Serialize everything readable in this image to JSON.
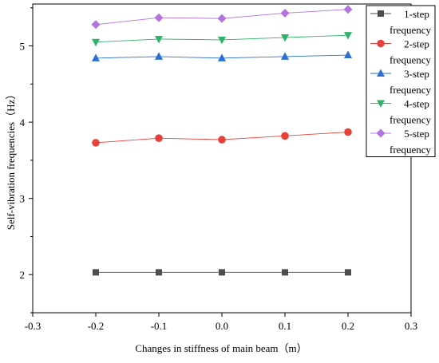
{
  "chart_data": {
    "type": "line",
    "xlabel": "Changes in stiffness of main beam（m）",
    "ylabel": "Self-vibration frequencies（Hz）",
    "xlim": [
      -0.3,
      0.3
    ],
    "ylim": [
      1.5,
      5.55
    ],
    "xticks": [
      -0.3,
      -0.2,
      -0.1,
      0.0,
      0.1,
      0.2,
      0.3
    ],
    "xtick_labels": [
      "-0.3",
      "-0.2",
      "-0.1",
      "0.0",
      "0.1",
      "0.2",
      "0.3"
    ],
    "yticks": [
      2,
      3,
      4,
      5
    ],
    "ytick_labels": [
      "2",
      "3",
      "4",
      "5"
    ],
    "grid": false,
    "legend_position": "top-right",
    "x": [
      -0.2,
      -0.1,
      0.0,
      0.1,
      0.2
    ],
    "series": [
      {
        "name": "1-step frequency",
        "color": "#4d4d4d",
        "marker": "square",
        "values": [
          2.03,
          2.03,
          2.03,
          2.03,
          2.03
        ]
      },
      {
        "name": "2-step frequency",
        "color": "#e8403a",
        "marker": "circle",
        "values": [
          3.73,
          3.79,
          3.77,
          3.82,
          3.87
        ]
      },
      {
        "name": "3-step frequency",
        "color": "#2a6fd6",
        "marker": "triangle-up",
        "values": [
          4.84,
          4.86,
          4.84,
          4.86,
          4.88
        ]
      },
      {
        "name": "4-step frequency",
        "color": "#2fb36a",
        "marker": "triangle-down",
        "values": [
          5.05,
          5.09,
          5.08,
          5.11,
          5.14
        ]
      },
      {
        "name": "5-step frequency",
        "color": "#b474e0",
        "marker": "diamond",
        "values": [
          5.28,
          5.37,
          5.36,
          5.43,
          5.48
        ]
      }
    ]
  }
}
